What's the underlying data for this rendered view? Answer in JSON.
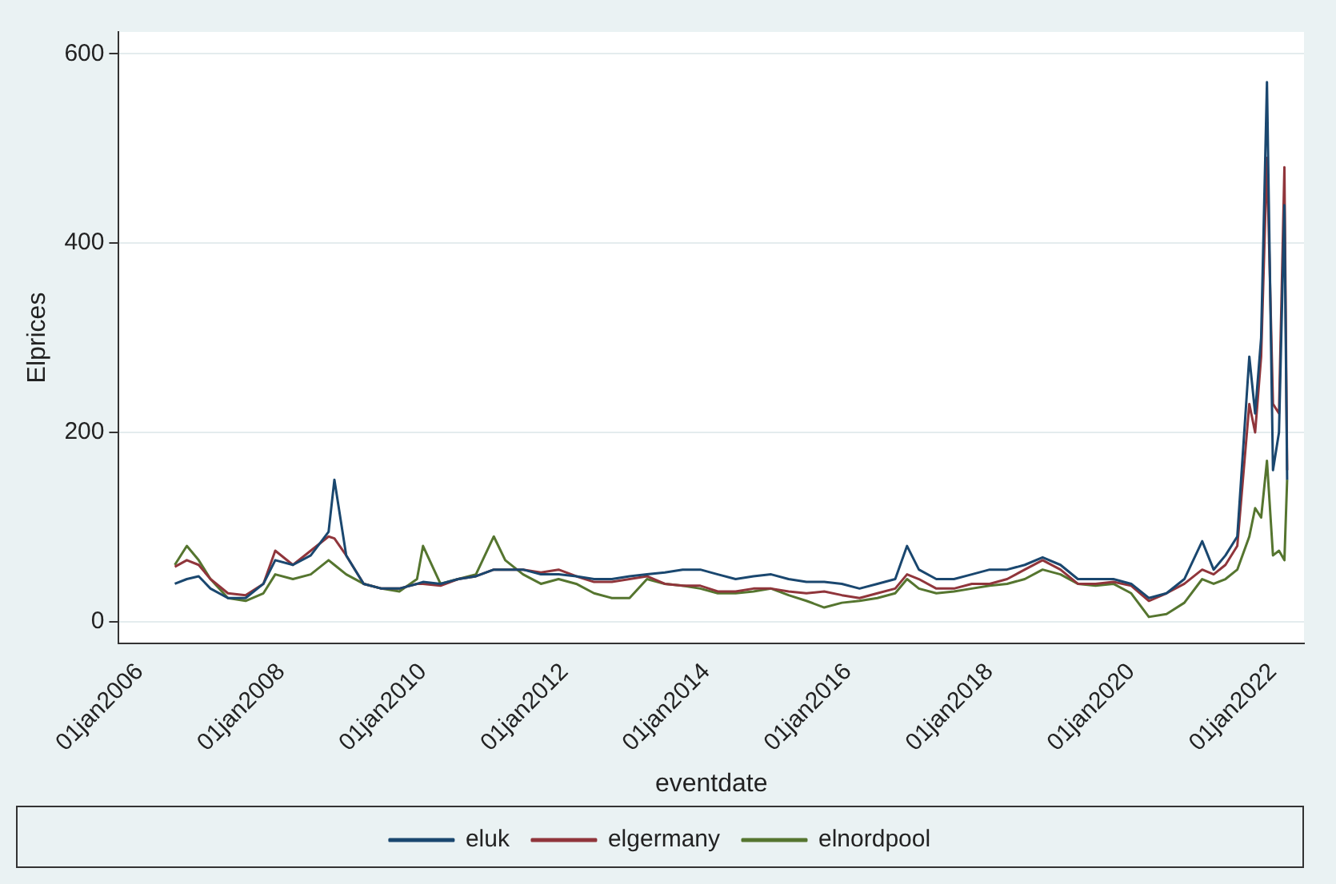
{
  "chart_data": {
    "type": "line",
    "xlabel": "eventdate",
    "ylabel": "Elprices",
    "x": [
      "2006-07",
      "2006-09",
      "2006-11",
      "2007-01",
      "2007-04",
      "2007-07",
      "2007-10",
      "2007-12",
      "2008-03",
      "2008-06",
      "2008-09",
      "2008-10",
      "2008-12",
      "2009-03",
      "2009-06",
      "2009-09",
      "2009-12",
      "2010-01",
      "2010-04",
      "2010-07",
      "2010-10",
      "2011-01",
      "2011-03",
      "2011-06",
      "2011-09",
      "2011-12",
      "2012-03",
      "2012-06",
      "2012-09",
      "2012-12",
      "2013-03",
      "2013-06",
      "2013-09",
      "2013-12",
      "2014-03",
      "2014-06",
      "2014-09",
      "2014-12",
      "2015-03",
      "2015-06",
      "2015-09",
      "2015-12",
      "2016-03",
      "2016-06",
      "2016-09",
      "2016-11",
      "2017-01",
      "2017-04",
      "2017-07",
      "2017-10",
      "2018-01",
      "2018-04",
      "2018-07",
      "2018-10",
      "2019-01",
      "2019-04",
      "2019-07",
      "2019-10",
      "2020-01",
      "2020-04",
      "2020-07",
      "2020-10",
      "2021-01",
      "2021-03",
      "2021-05",
      "2021-07",
      "2021-09",
      "2021-10",
      "2021-11",
      "2021-12",
      "2022-01",
      "2022-02",
      "2022-03",
      "2022-03-15"
    ],
    "series": [
      {
        "name": "eluk",
        "color": "#1a476f",
        "values": [
          40,
          45,
          48,
          35,
          25,
          25,
          40,
          65,
          60,
          70,
          95,
          150,
          70,
          40,
          35,
          35,
          40,
          42,
          40,
          45,
          48,
          55,
          55,
          55,
          50,
          50,
          48,
          45,
          45,
          48,
          50,
          52,
          55,
          55,
          50,
          45,
          48,
          50,
          45,
          42,
          42,
          40,
          35,
          40,
          45,
          80,
          55,
          45,
          45,
          50,
          55,
          55,
          60,
          68,
          60,
          45,
          45,
          45,
          40,
          25,
          30,
          45,
          85,
          55,
          70,
          90,
          280,
          220,
          300,
          570,
          160,
          200,
          440,
          150
        ]
      },
      {
        "name": "elgermany",
        "color": "#90353b",
        "values": [
          58,
          65,
          60,
          45,
          30,
          28,
          40,
          75,
          60,
          75,
          90,
          88,
          70,
          40,
          35,
          35,
          40,
          40,
          38,
          45,
          48,
          55,
          55,
          55,
          52,
          55,
          48,
          42,
          42,
          45,
          48,
          40,
          38,
          38,
          32,
          32,
          35,
          35,
          32,
          30,
          32,
          28,
          25,
          30,
          35,
          50,
          45,
          35,
          35,
          40,
          40,
          45,
          55,
          65,
          55,
          40,
          40,
          42,
          38,
          22,
          30,
          40,
          55,
          50,
          60,
          80,
          230,
          200,
          280,
          490,
          230,
          220,
          480,
          160
        ]
      },
      {
        "name": "elnordpool",
        "color": "#55752f",
        "values": [
          60,
          80,
          65,
          45,
          25,
          22,
          30,
          50,
          45,
          50,
          65,
          60,
          50,
          40,
          35,
          32,
          45,
          80,
          40,
          45,
          50,
          90,
          65,
          50,
          40,
          45,
          40,
          30,
          25,
          25,
          45,
          40,
          38,
          35,
          30,
          30,
          32,
          35,
          28,
          22,
          15,
          20,
          22,
          25,
          30,
          45,
          35,
          30,
          32,
          35,
          38,
          40,
          45,
          55,
          50,
          40,
          38,
          40,
          30,
          5,
          8,
          20,
          45,
          40,
          45,
          55,
          90,
          120,
          110,
          170,
          70,
          75,
          65,
          150
        ]
      }
    ],
    "xlim": [
      "2005-09-15",
      "2022-06-10"
    ],
    "xticks": [
      {
        "value": "2006-01-01",
        "label": "01jan2006"
      },
      {
        "value": "2008-01-01",
        "label": "01jan2008"
      },
      {
        "value": "2010-01-01",
        "label": "01jan2010"
      },
      {
        "value": "2012-01-01",
        "label": "01jan2012"
      },
      {
        "value": "2014-01-01",
        "label": "01jan2014"
      },
      {
        "value": "2016-01-01",
        "label": "01jan2016"
      },
      {
        "value": "2018-01-01",
        "label": "01jan2018"
      },
      {
        "value": "2020-01-01",
        "label": "01jan2020"
      },
      {
        "value": "2022-01-01",
        "label": "01jan2022"
      }
    ],
    "ylim": [
      -23,
      623
    ],
    "yticks": [
      0,
      200,
      400,
      600
    ],
    "grid": "y",
    "legend": "bottom",
    "marker": "none",
    "line_style": "solid"
  }
}
